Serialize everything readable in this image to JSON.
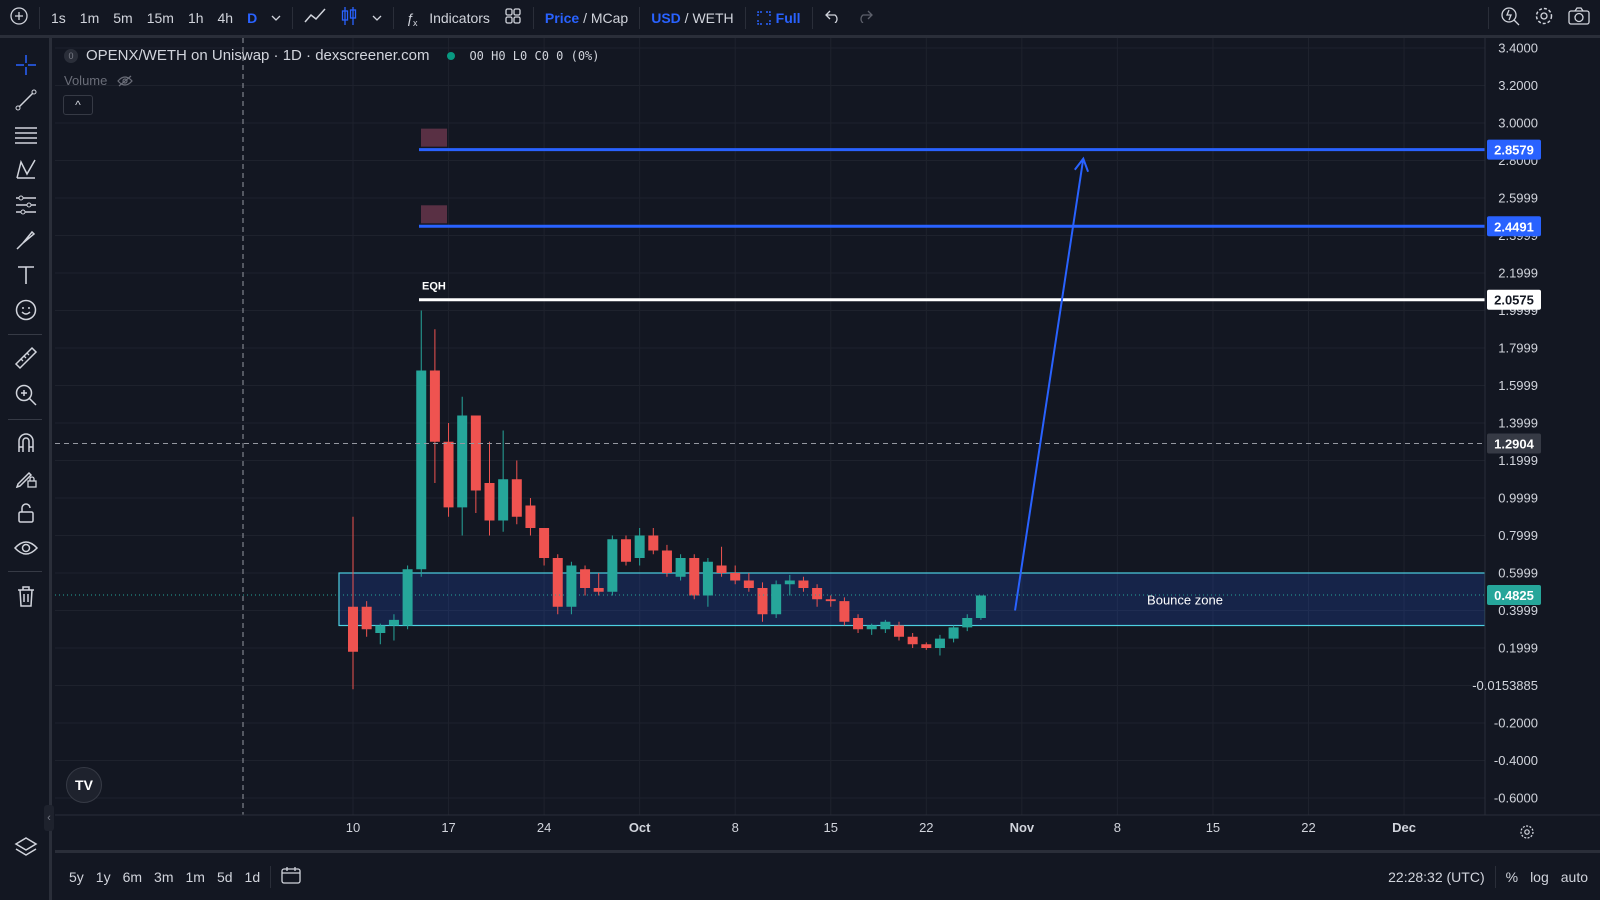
{
  "toolbar": {
    "intervals": [
      "1s",
      "1m",
      "5m",
      "15m",
      "1h",
      "4h",
      "D"
    ],
    "active_interval": "D",
    "indicators_label": "Indicators",
    "price_label": "Price",
    "mcap_label": "MCap",
    "usd_label": "USD",
    "weth_label": "WETH",
    "full_label": "Full"
  },
  "legend": {
    "title": "OPENX/WETH on Uniswap · 1D · dexscreener.com",
    "ohlc": "O0 H0 L0 C0 0 (0%)",
    "volume_label": "Volume"
  },
  "bottom": {
    "ranges": [
      "5y",
      "1y",
      "6m",
      "3m",
      "1m",
      "5d",
      "1d"
    ],
    "clock": "22:28:32 (UTC)",
    "percent": "%",
    "log": "log",
    "auto": "auto"
  },
  "colors": {
    "up": "#26a69a",
    "down": "#ef5350",
    "accent": "#2962ff",
    "zone": "#4dd0e1"
  },
  "chart_data": {
    "type": "candlestick",
    "title": "OPENX/WETH on Uniswap · 1D · dexscreener.com",
    "y_ticks": [
      "3.4000",
      "3.2000",
      "3.0000",
      "2.8000",
      "2.5999",
      "2.3999",
      "2.1999",
      "1.9999",
      "1.7999",
      "1.5999",
      "1.3999",
      "1.1999",
      "0.9999",
      "0.7999",
      "0.5999",
      "0.3999",
      "0.1999",
      "-0.0153885",
      "-0.2000",
      "-0.4000",
      "-0.6000"
    ],
    "ylim": [
      -0.65,
      3.45
    ],
    "x_ticks": [
      "10",
      "17",
      "24",
      "Oct",
      "8",
      "15",
      "22",
      "Nov",
      "8",
      "15",
      "22",
      "Dec"
    ],
    "x_tick_days": [
      0,
      7,
      14,
      21,
      28,
      35,
      42,
      49,
      56,
      63,
      70,
      77
    ],
    "candles": [
      {
        "d": 0,
        "o": 0.42,
        "h": 0.9,
        "l": -0.02,
        "c": 0.18
      },
      {
        "d": 1,
        "o": 0.42,
        "h": 0.45,
        "l": 0.26,
        "c": 0.3
      },
      {
        "d": 2,
        "o": 0.28,
        "h": 0.33,
        "l": 0.22,
        "c": 0.32
      },
      {
        "d": 3,
        "o": 0.32,
        "h": 0.38,
        "l": 0.24,
        "c": 0.35
      },
      {
        "d": 4,
        "o": 0.32,
        "h": 0.64,
        "l": 0.3,
        "c": 0.62
      },
      {
        "d": 5,
        "o": 0.62,
        "h": 2.0,
        "l": 0.58,
        "c": 1.68
      },
      {
        "d": 6,
        "o": 1.68,
        "h": 1.9,
        "l": 1.08,
        "c": 1.3
      },
      {
        "d": 7,
        "o": 1.3,
        "h": 1.4,
        "l": 0.9,
        "c": 0.95
      },
      {
        "d": 8,
        "o": 0.95,
        "h": 1.54,
        "l": 0.8,
        "c": 1.44
      },
      {
        "d": 9,
        "o": 1.44,
        "h": 1.44,
        "l": 0.92,
        "c": 1.04
      },
      {
        "d": 10,
        "o": 1.08,
        "h": 1.3,
        "l": 0.8,
        "c": 0.88
      },
      {
        "d": 11,
        "o": 0.88,
        "h": 1.36,
        "l": 0.82,
        "c": 1.1
      },
      {
        "d": 12,
        "o": 1.1,
        "h": 1.2,
        "l": 0.86,
        "c": 0.9
      },
      {
        "d": 13,
        "o": 0.96,
        "h": 1.0,
        "l": 0.8,
        "c": 0.84
      },
      {
        "d": 14,
        "o": 0.84,
        "h": 0.84,
        "l": 0.64,
        "c": 0.68
      },
      {
        "d": 15,
        "o": 0.68,
        "h": 0.7,
        "l": 0.38,
        "c": 0.42
      },
      {
        "d": 16,
        "o": 0.42,
        "h": 0.66,
        "l": 0.38,
        "c": 0.64
      },
      {
        "d": 17,
        "o": 0.62,
        "h": 0.64,
        "l": 0.48,
        "c": 0.52
      },
      {
        "d": 18,
        "o": 0.52,
        "h": 0.6,
        "l": 0.48,
        "c": 0.5
      },
      {
        "d": 19,
        "o": 0.5,
        "h": 0.8,
        "l": 0.48,
        "c": 0.78
      },
      {
        "d": 20,
        "o": 0.78,
        "h": 0.8,
        "l": 0.64,
        "c": 0.66
      },
      {
        "d": 21,
        "o": 0.68,
        "h": 0.84,
        "l": 0.64,
        "c": 0.8
      },
      {
        "d": 22,
        "o": 0.8,
        "h": 0.84,
        "l": 0.7,
        "c": 0.72
      },
      {
        "d": 23,
        "o": 0.72,
        "h": 0.75,
        "l": 0.58,
        "c": 0.6
      },
      {
        "d": 24,
        "o": 0.58,
        "h": 0.7,
        "l": 0.56,
        "c": 0.68
      },
      {
        "d": 25,
        "o": 0.68,
        "h": 0.7,
        "l": 0.46,
        "c": 0.48
      },
      {
        "d": 26,
        "o": 0.48,
        "h": 0.68,
        "l": 0.42,
        "c": 0.66
      },
      {
        "d": 27,
        "o": 0.64,
        "h": 0.74,
        "l": 0.58,
        "c": 0.6
      },
      {
        "d": 28,
        "o": 0.6,
        "h": 0.64,
        "l": 0.54,
        "c": 0.56
      },
      {
        "d": 29,
        "o": 0.56,
        "h": 0.6,
        "l": 0.5,
        "c": 0.52
      },
      {
        "d": 30,
        "o": 0.52,
        "h": 0.55,
        "l": 0.34,
        "c": 0.38
      },
      {
        "d": 31,
        "o": 0.38,
        "h": 0.56,
        "l": 0.36,
        "c": 0.54
      },
      {
        "d": 32,
        "o": 0.54,
        "h": 0.59,
        "l": 0.48,
        "c": 0.56
      },
      {
        "d": 33,
        "o": 0.56,
        "h": 0.58,
        "l": 0.5,
        "c": 0.52
      },
      {
        "d": 34,
        "o": 0.52,
        "h": 0.54,
        "l": 0.42,
        "c": 0.46
      },
      {
        "d": 35,
        "o": 0.46,
        "h": 0.48,
        "l": 0.42,
        "c": 0.45
      },
      {
        "d": 36,
        "o": 0.45,
        "h": 0.47,
        "l": 0.32,
        "c": 0.34
      },
      {
        "d": 37,
        "o": 0.36,
        "h": 0.38,
        "l": 0.28,
        "c": 0.3
      },
      {
        "d": 38,
        "o": 0.3,
        "h": 0.33,
        "l": 0.27,
        "c": 0.32
      },
      {
        "d": 39,
        "o": 0.3,
        "h": 0.35,
        "l": 0.28,
        "c": 0.34
      },
      {
        "d": 40,
        "o": 0.32,
        "h": 0.34,
        "l": 0.24,
        "c": 0.26
      },
      {
        "d": 41,
        "o": 0.26,
        "h": 0.28,
        "l": 0.2,
        "c": 0.22
      },
      {
        "d": 42,
        "o": 0.22,
        "h": 0.23,
        "l": 0.19,
        "c": 0.2
      },
      {
        "d": 43,
        "o": 0.2,
        "h": 0.27,
        "l": 0.16,
        "c": 0.25
      },
      {
        "d": 44,
        "o": 0.25,
        "h": 0.32,
        "l": 0.23,
        "c": 0.31
      },
      {
        "d": 45,
        "o": 0.31,
        "h": 0.38,
        "l": 0.29,
        "c": 0.36
      },
      {
        "d": 46,
        "o": 0.36,
        "h": 0.48,
        "l": 0.35,
        "c": 0.48
      }
    ],
    "lines": [
      {
        "label": "2.8579",
        "value": 2.8579,
        "color": "#2962ff"
      },
      {
        "label": "2.4491",
        "value": 2.4491,
        "color": "#2962ff"
      },
      {
        "label": "2.0575",
        "value": 2.0575,
        "color": "#ffffff",
        "annotation": "EQH"
      }
    ],
    "crosshair_label": "1.2904",
    "crosshair_value": 1.2904,
    "last_price_label": "0.4825",
    "last_price": 0.4825,
    "zone": {
      "label": "Bounce zone",
      "top": 0.6,
      "bottom": 0.32
    },
    "arrow": {
      "from_day": 48.5,
      "from": 0.4,
      "to_day": 53.5,
      "to": 2.81
    }
  }
}
